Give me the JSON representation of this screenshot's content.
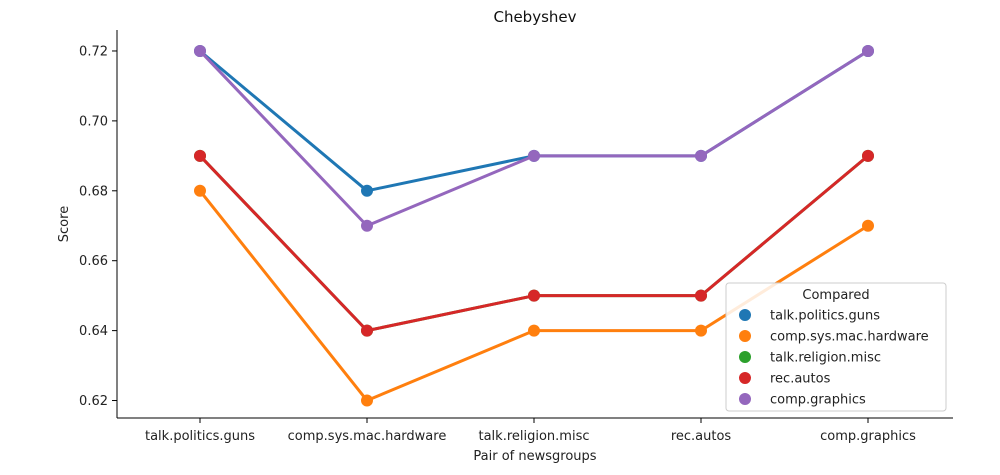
{
  "chart_data": {
    "type": "line",
    "title": "Chebyshev",
    "xlabel": "Pair of newsgroups",
    "ylabel": "Score",
    "categories": [
      "talk.politics.guns",
      "comp.sys.mac.hardware",
      "talk.religion.misc",
      "rec.autos",
      "comp.graphics"
    ],
    "ylim": [
      0.615,
      0.726
    ],
    "yticks": [
      "0.62",
      "0.64",
      "0.66",
      "0.68",
      "0.70",
      "0.72"
    ],
    "grid": false,
    "legend": {
      "title": "Compared",
      "placement": "bottom-right"
    },
    "series": [
      {
        "name": "talk.politics.guns",
        "color": "#1f77b4",
        "values": [
          0.72,
          0.68,
          0.69,
          0.69,
          0.72
        ]
      },
      {
        "name": "comp.sys.mac.hardware",
        "color": "#ff7f0e",
        "values": [
          0.68,
          0.62,
          0.64,
          0.64,
          0.67
        ]
      },
      {
        "name": "talk.religion.misc",
        "color": "#2ca02c",
        "values": [
          0.69,
          0.64,
          0.65,
          0.65,
          0.69
        ]
      },
      {
        "name": "rec.autos",
        "color": "#d62728",
        "values": [
          0.69,
          0.64,
          0.65,
          0.65,
          0.69
        ]
      },
      {
        "name": "comp.graphics",
        "color": "#9467bd",
        "values": [
          0.72,
          0.67,
          0.69,
          0.69,
          0.72
        ]
      }
    ]
  }
}
